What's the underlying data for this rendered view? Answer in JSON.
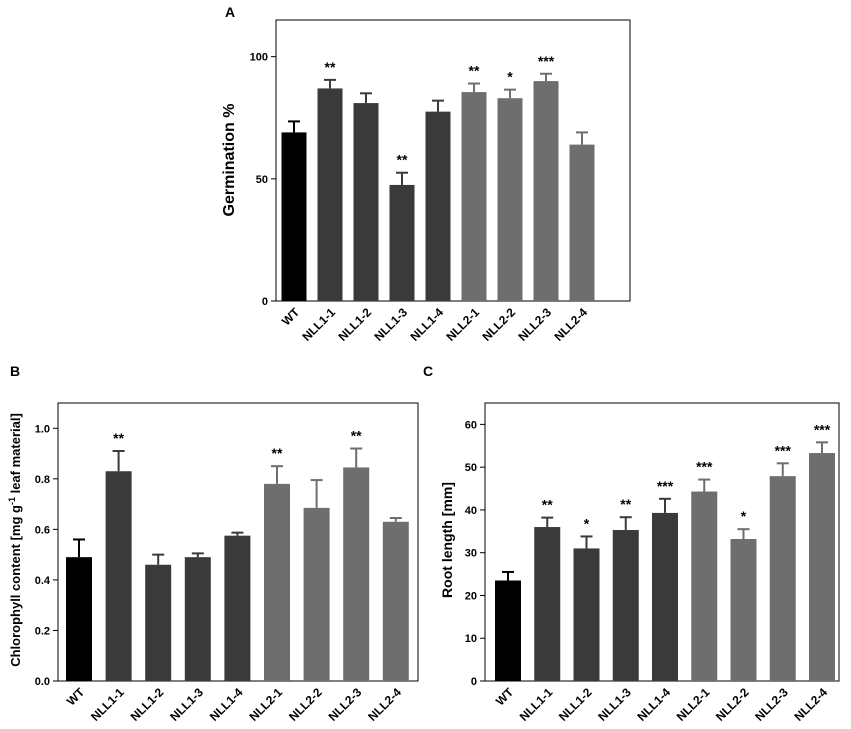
{
  "chart_data": [
    {
      "panel": "A",
      "type": "bar",
      "ylabel": "Germination %",
      "ylim": [
        0,
        115
      ],
      "yticks": [
        0,
        50,
        100
      ],
      "categories": [
        "WT",
        "NLL1-1",
        "NLL1-2",
        "NLL1-3",
        "NLL1-4",
        "NLL2-1",
        "NLL2-2",
        "NLL2-3",
        "NLL2-4"
      ],
      "values": [
        69,
        87,
        81,
        47.5,
        77.5,
        85.5,
        83,
        90,
        64
      ],
      "errors": [
        4.5,
        3.5,
        4,
        5,
        4.5,
        3.5,
        3.5,
        3,
        5
      ],
      "significance": [
        "",
        "**",
        "",
        "**",
        "",
        "**",
        "*",
        "***",
        ""
      ],
      "colors": [
        "#000000",
        "#3a3a3a",
        "#3a3a3a",
        "#3a3a3a",
        "#3a3a3a",
        "#6e6e6e",
        "#6e6e6e",
        "#6e6e6e",
        "#6e6e6e"
      ]
    },
    {
      "panel": "B",
      "type": "bar",
      "ylabel": "Chlorophyll content [mg g",
      "ylabel_sup": "-1",
      "ylabel_end": " leaf material]",
      "ylim": [
        0,
        1.1
      ],
      "yticks": [
        "0.0",
        "0.2",
        "0.4",
        "0.6",
        "0.8",
        "1.0"
      ],
      "categories": [
        "WT",
        "NLL1-1",
        "NLL1-2",
        "NLL1-3",
        "NLL1-4",
        "NLL2-1",
        "NLL2-2",
        "NLL2-3",
        "NLL2-4"
      ],
      "values": [
        0.49,
        0.83,
        0.46,
        0.49,
        0.575,
        0.78,
        0.685,
        0.845,
        0.63
      ],
      "errors": [
        0.07,
        0.08,
        0.04,
        0.015,
        0.012,
        0.07,
        0.11,
        0.075,
        0.015
      ],
      "significance": [
        "",
        "**",
        "",
        "",
        "",
        "**",
        "",
        "**",
        ""
      ],
      "colors": [
        "#000000",
        "#3a3a3a",
        "#3a3a3a",
        "#3a3a3a",
        "#3a3a3a",
        "#6e6e6e",
        "#6e6e6e",
        "#6e6e6e",
        "#6e6e6e"
      ]
    },
    {
      "panel": "C",
      "type": "bar",
      "ylabel": "Root length [mm]",
      "ylim": [
        0,
        65
      ],
      "yticks": [
        0,
        10,
        20,
        30,
        40,
        50,
        60
      ],
      "categories": [
        "WT",
        "NLL1-1",
        "NLL1-2",
        "NLL1-3",
        "NLL1-4",
        "NLL2-1",
        "NLL2-2",
        "NLL2-3",
        "NLL2-4"
      ],
      "values": [
        23.5,
        36,
        31,
        35.3,
        39.3,
        44.3,
        33.2,
        47.9,
        53.3
      ],
      "errors": [
        2,
        2.2,
        2.8,
        3,
        3.3,
        2.8,
        2.3,
        3,
        2.5
      ],
      "significance": [
        "",
        "**",
        "*",
        "**",
        "***",
        "***",
        "*",
        "***",
        "***"
      ],
      "colors": [
        "#000000",
        "#3a3a3a",
        "#3a3a3a",
        "#3a3a3a",
        "#3a3a3a",
        "#6e6e6e",
        "#6e6e6e",
        "#6e6e6e",
        "#6e6e6e"
      ]
    }
  ]
}
